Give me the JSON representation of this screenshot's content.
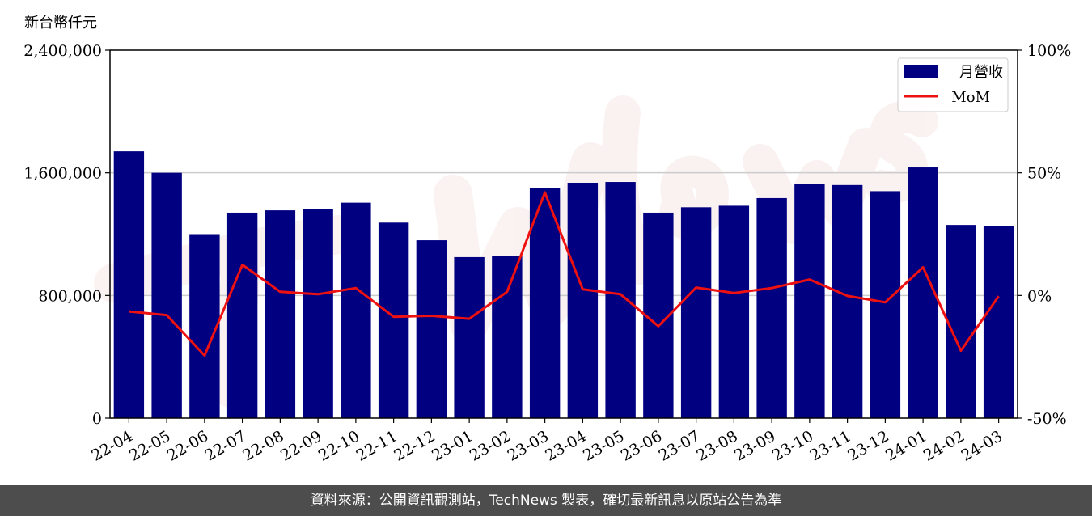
{
  "chart_data": {
    "type": "bar",
    "ylabel": "新台幣仟元",
    "categories": [
      "22-04",
      "22-05",
      "22-06",
      "22-07",
      "22-08",
      "22-09",
      "22-10",
      "22-11",
      "22-12",
      "23-01",
      "23-02",
      "23-03",
      "23-04",
      "23-05",
      "23-06",
      "23-07",
      "23-08",
      "23-09",
      "23-10",
      "23-11",
      "23-12",
      "24-01",
      "24-02",
      "24-03"
    ],
    "series": [
      {
        "name": "月營收",
        "type": "bar",
        "axis": "left",
        "color": "#000080",
        "values": [
          1740000,
          1600000,
          1200000,
          1340000,
          1355000,
          1365000,
          1405000,
          1275000,
          1160000,
          1050000,
          1060000,
          1500000,
          1535000,
          1540000,
          1340000,
          1375000,
          1385000,
          1435000,
          1525000,
          1520000,
          1480000,
          1635000,
          1260000,
          1255000
        ]
      },
      {
        "name": "MoM",
        "type": "line",
        "axis": "right",
        "color": "#ee1111",
        "values": [
          -6.5,
          -8,
          -24.5,
          12.5,
          1.5,
          0.5,
          3,
          -8.7,
          -8.3,
          -9.5,
          1.5,
          42,
          2.5,
          0.5,
          -12.5,
          3.2,
          1,
          3,
          6.5,
          -0.2,
          -2.8,
          11.5,
          -22.5,
          -0.3
        ]
      }
    ],
    "ylim": [
      0,
      2400000
    ],
    "y_ticks": [
      "0",
      "800,000",
      "1,600,000",
      "2,400,000"
    ],
    "y2lim": [
      -50,
      100
    ],
    "y2_ticks": [
      "-50%",
      "0%",
      "50%",
      "100%"
    ],
    "grid": "horizontal",
    "legend_position": "top-right"
  },
  "watermark": "TechNews",
  "footer": {
    "source_text": "資料來源：公開資訊觀測站，TechNews 製表，確切最新訊息以原站公告為準"
  }
}
